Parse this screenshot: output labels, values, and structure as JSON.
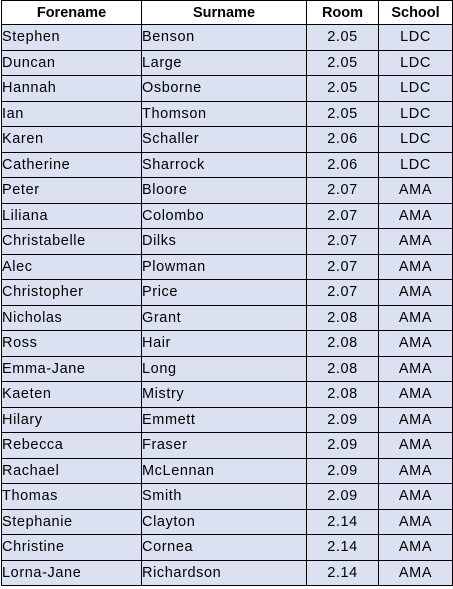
{
  "columns": {
    "forename": "Forename",
    "surname": "Surname",
    "room": "Room",
    "school": "School"
  },
  "rows": [
    {
      "forename": "Stephen",
      "surname": "Benson",
      "room": "2.05",
      "school": "LDC"
    },
    {
      "forename": "Duncan",
      "surname": "Large",
      "room": "2.05",
      "school": "LDC"
    },
    {
      "forename": "Hannah",
      "surname": "Osborne",
      "room": "2.05",
      "school": "LDC"
    },
    {
      "forename": "Ian",
      "surname": "Thomson",
      "room": "2.05",
      "school": "LDC"
    },
    {
      "forename": "Karen",
      "surname": "Schaller",
      "room": "2.06",
      "school": "LDC"
    },
    {
      "forename": "Catherine",
      "surname": "Sharrock",
      "room": "2.06",
      "school": "LDC"
    },
    {
      "forename": "Peter",
      "surname": "Bloore",
      "room": "2.07",
      "school": "AMA"
    },
    {
      "forename": "Liliana",
      "surname": "Colombo",
      "room": "2.07",
      "school": "AMA"
    },
    {
      "forename": "Christabelle",
      "surname": "Dilks",
      "room": "2.07",
      "school": "AMA"
    },
    {
      "forename": "Alec",
      "surname": "Plowman",
      "room": "2.07",
      "school": "AMA"
    },
    {
      "forename": "Christopher",
      "surname": "Price",
      "room": "2.07",
      "school": "AMA"
    },
    {
      "forename": "Nicholas",
      "surname": "Grant",
      "room": "2.08",
      "school": "AMA"
    },
    {
      "forename": "Ross",
      "surname": "Hair",
      "room": "2.08",
      "school": "AMA"
    },
    {
      "forename": "Emma-Jane",
      "surname": "Long",
      "room": "2.08",
      "school": "AMA"
    },
    {
      "forename": "Kaeten",
      "surname": "Mistry",
      "room": "2.08",
      "school": "AMA"
    },
    {
      "forename": "Hilary",
      "surname": "Emmett",
      "room": "2.09",
      "school": "AMA"
    },
    {
      "forename": "Rebecca",
      "surname": "Fraser",
      "room": "2.09",
      "school": "AMA"
    },
    {
      "forename": "Rachael",
      "surname": "McLennan",
      "room": "2.09",
      "school": "AMA"
    },
    {
      "forename": "Thomas",
      "surname": "Smith",
      "room": "2.09",
      "school": "AMA"
    },
    {
      "forename": "Stephanie",
      "surname": "Clayton",
      "room": "2.14",
      "school": "AMA"
    },
    {
      "forename": "Christine",
      "surname": "Cornea",
      "room": "2.14",
      "school": "AMA"
    },
    {
      "forename": "Lorna-Jane",
      "surname": "Richardson",
      "room": "2.14",
      "school": "AMA"
    }
  ],
  "colors": {
    "cell_fill": "#dbe1f1",
    "header_fill": "#ffffff",
    "border": "#000000"
  }
}
